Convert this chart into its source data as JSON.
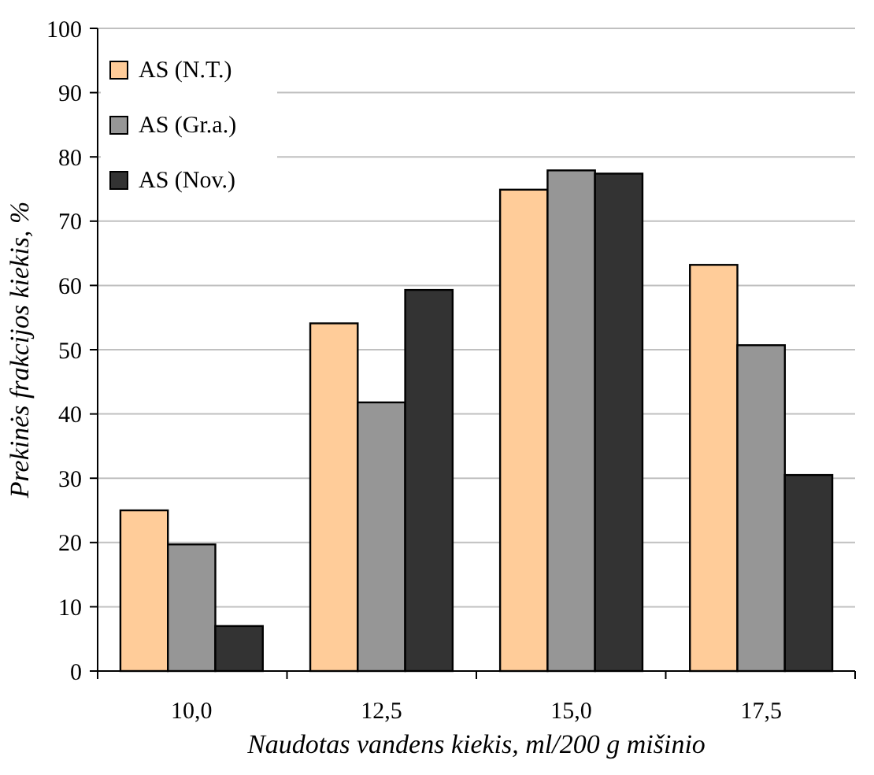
{
  "chart_data": {
    "type": "bar",
    "xlabel": "Naudotas vandens kiekis, ml/200 g mišinio",
    "ylabel": "Prekinės frakcijos kiekis, %",
    "categories": [
      "10,0",
      "12,5",
      "15,0",
      "17,5"
    ],
    "series": [
      {
        "name": "AS (N.T.)",
        "color": "#ffcc99",
        "values": [
          25.0,
          54.1,
          74.9,
          63.2
        ]
      },
      {
        "name": "AS (Gr.a.)",
        "color": "#969696",
        "values": [
          19.7,
          41.8,
          77.9,
          50.7
        ]
      },
      {
        "name": "AS (Nov.)",
        "color": "#333333",
        "values": [
          7.0,
          59.3,
          77.4,
          30.5
        ]
      }
    ],
    "ylim": [
      0,
      100
    ],
    "yticks": [
      0,
      10,
      20,
      30,
      40,
      50,
      60,
      70,
      80,
      90,
      100
    ],
    "grid": "y",
    "legend": "top left"
  }
}
